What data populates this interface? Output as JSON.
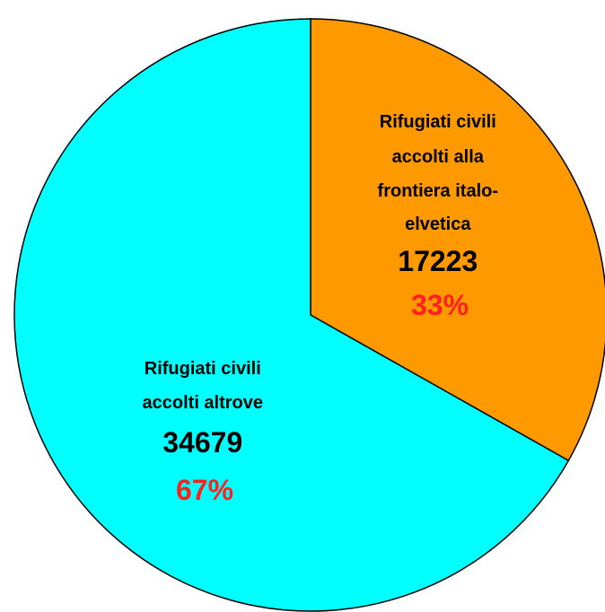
{
  "chart_data": {
    "type": "pie",
    "slices": [
      {
        "label_lines": [
          "Rifugiati civili",
          "accolti alla",
          "frontiera italo-",
          "elvetica"
        ],
        "value": 17223,
        "value_text": "17223",
        "percent_text": "33%",
        "color": "#ff9900"
      },
      {
        "label_lines": [
          "Rifugiati civili",
          "accolti altrove"
        ],
        "value": 34679,
        "value_text": "34679",
        "percent_text": "67%",
        "color": "#00ffff"
      }
    ],
    "percent_color": "#ff2020",
    "start_direction": "top",
    "direction": "clockwise",
    "legend": "none"
  }
}
